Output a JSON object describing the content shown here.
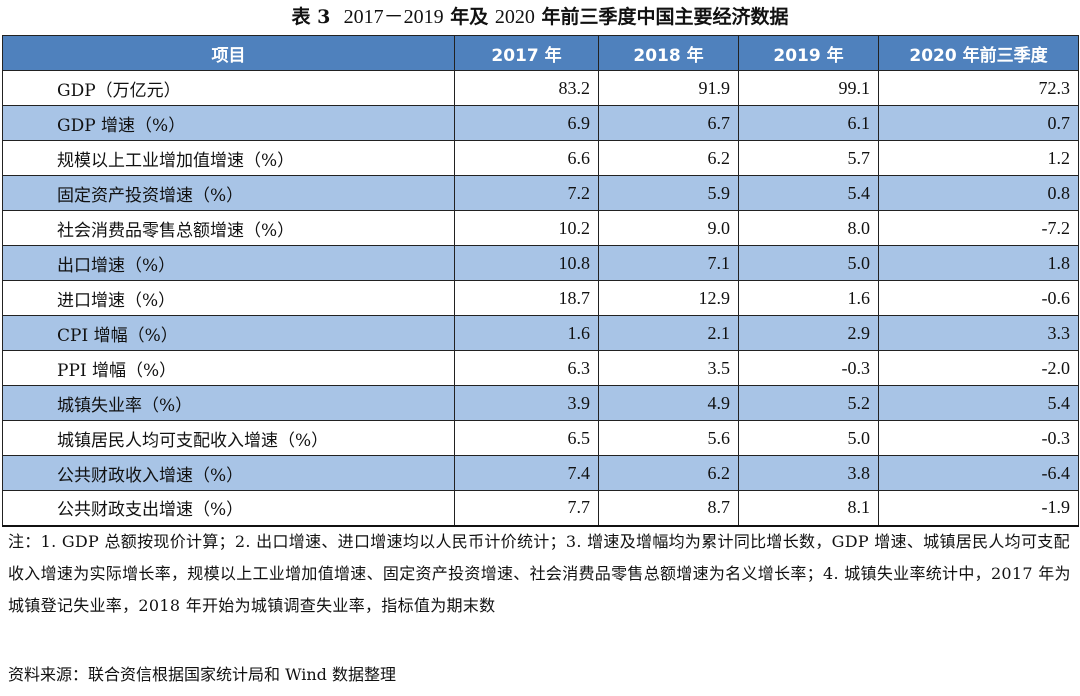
{
  "title": {
    "label": "表 3",
    "years": "2017－2019",
    "mid": " 年及 ",
    "year2": "2020",
    "rest": " 年前三季度中国主要经济数据"
  },
  "table": {
    "headers": [
      "项目",
      "2017 年",
      "2018 年",
      "2019 年",
      "2020 年前三季度"
    ],
    "rows": [
      {
        "item": "GDP（万亿元）",
        "v": [
          "83.2",
          "91.9",
          "99.1",
          "72.3"
        ]
      },
      {
        "item": "GDP 增速（%）",
        "v": [
          "6.9",
          "6.7",
          "6.1",
          "0.7"
        ]
      },
      {
        "item": "规模以上工业增加值增速（%）",
        "v": [
          "6.6",
          "6.2",
          "5.7",
          "1.2"
        ]
      },
      {
        "item": "固定资产投资增速（%）",
        "v": [
          "7.2",
          "5.9",
          "5.4",
          "0.8"
        ]
      },
      {
        "item": "社会消费品零售总额增速（%）",
        "v": [
          "10.2",
          "9.0",
          "8.0",
          "-7.2"
        ]
      },
      {
        "item": "出口增速（%）",
        "v": [
          "10.8",
          "7.1",
          "5.0",
          "1.8"
        ]
      },
      {
        "item": "进口增速（%）",
        "v": [
          "18.7",
          "12.9",
          "1.6",
          "-0.6"
        ]
      },
      {
        "item": "CPI 增幅（%）",
        "v": [
          "1.6",
          "2.1",
          "2.9",
          "3.3"
        ]
      },
      {
        "item": "PPI 增幅（%）",
        "v": [
          "6.3",
          "3.5",
          "-0.3",
          "-2.0"
        ]
      },
      {
        "item": "城镇失业率（%）",
        "v": [
          "3.9",
          "4.9",
          "5.2",
          "5.4"
        ]
      },
      {
        "item": "城镇居民人均可支配收入增速（%）",
        "v": [
          "6.5",
          "5.6",
          "5.0",
          "-0.3"
        ]
      },
      {
        "item": "公共财政收入增速（%）",
        "v": [
          "7.4",
          "6.2",
          "3.8",
          "-6.4"
        ]
      },
      {
        "item": "公共财政支出增速（%）",
        "v": [
          "7.7",
          "8.7",
          "8.1",
          "-1.9"
        ]
      }
    ]
  },
  "note": "注：1. GDP 总额按现价计算；2. 出口增速、进口增速均以人民币计价统计；3. 增速及增幅均为累计同比增长数，GDP 增速、城镇居民人均可支配收入增速为实际增长率，规模以上工业增加值增速、固定资产投资增速、社会消费品零售总额增速为名义增长率；4. 城镇失业率统计中，2017 年为城镇登记失业率，2018 年开始为城镇调查失业率，指标值为期末数",
  "source": "资料来源：联合资信根据国家统计局和 Wind 数据整理",
  "colors": {
    "header_bg": "#4f81bd",
    "shaded_row_bg": "#a8c4e6"
  }
}
